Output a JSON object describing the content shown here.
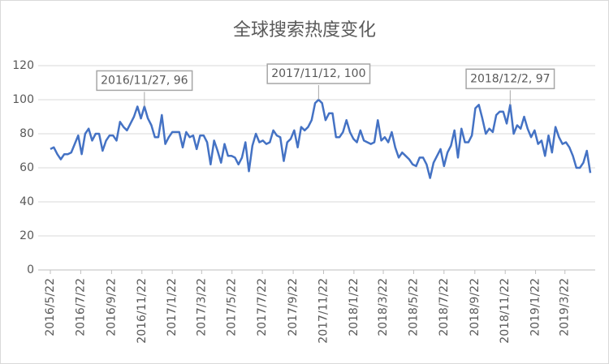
{
  "chart_data": {
    "type": "line",
    "title": "全球搜索热度变化",
    "x": [
      "2016/5/22",
      "2016/5/29",
      "2016/6/5",
      "2016/6/12",
      "2016/6/19",
      "2016/6/26",
      "2016/7/3",
      "2016/7/10",
      "2016/7/17",
      "2016/7/24",
      "2016/7/31",
      "2016/8/7",
      "2016/8/14",
      "2016/8/21",
      "2016/8/28",
      "2016/9/4",
      "2016/9/11",
      "2016/9/18",
      "2016/9/25",
      "2016/10/2",
      "2016/10/9",
      "2016/10/16",
      "2016/10/23",
      "2016/10/30",
      "2016/11/6",
      "2016/11/13",
      "2016/11/20",
      "2016/11/27",
      "2016/12/4",
      "2016/12/11",
      "2016/12/18",
      "2016/12/25",
      "2017/1/1",
      "2017/1/8",
      "2017/1/15",
      "2017/1/22",
      "2017/1/29",
      "2017/2/5",
      "2017/2/12",
      "2017/2/19",
      "2017/2/26",
      "2017/3/5",
      "2017/3/12",
      "2017/3/19",
      "2017/3/26",
      "2017/4/2",
      "2017/4/9",
      "2017/4/16",
      "2017/4/23",
      "2017/4/30",
      "2017/5/7",
      "2017/5/14",
      "2017/5/21",
      "2017/5/28",
      "2017/6/4",
      "2017/6/11",
      "2017/6/18",
      "2017/6/25",
      "2017/7/2",
      "2017/7/9",
      "2017/7/16",
      "2017/7/23",
      "2017/7/30",
      "2017/8/6",
      "2017/8/13",
      "2017/8/20",
      "2017/8/27",
      "2017/9/3",
      "2017/9/10",
      "2017/9/17",
      "2017/9/24",
      "2017/10/1",
      "2017/10/8",
      "2017/10/15",
      "2017/10/22",
      "2017/10/29",
      "2017/11/5",
      "2017/11/12",
      "2017/11/19",
      "2017/11/26",
      "2017/12/3",
      "2017/12/10",
      "2017/12/17",
      "2017/12/24",
      "2017/12/31",
      "2018/1/7",
      "2018/1/14",
      "2018/1/21",
      "2018/1/28",
      "2018/2/4",
      "2018/2/11",
      "2018/2/18",
      "2018/2/25",
      "2018/3/4",
      "2018/3/11",
      "2018/3/18",
      "2018/3/25",
      "2018/4/1",
      "2018/4/8",
      "2018/4/15",
      "2018/4/22",
      "2018/4/29",
      "2018/5/6",
      "2018/5/13",
      "2018/5/20",
      "2018/5/27",
      "2018/6/3",
      "2018/6/10",
      "2018/6/17",
      "2018/6/24",
      "2018/7/1",
      "2018/7/8",
      "2018/7/15",
      "2018/7/22",
      "2018/7/29",
      "2018/8/5",
      "2018/8/12",
      "2018/8/19",
      "2018/8/26",
      "2018/9/2",
      "2018/9/9",
      "2018/9/16",
      "2018/9/23",
      "2018/9/30",
      "2018/10/7",
      "2018/10/14",
      "2018/10/21",
      "2018/10/28",
      "2018/11/4",
      "2018/11/11",
      "2018/11/18",
      "2018/11/25",
      "2018/12/2",
      "2018/12/9",
      "2018/12/16",
      "2018/12/23",
      "2018/12/30",
      "2019/1/6",
      "2019/1/13",
      "2019/1/20",
      "2019/1/27",
      "2019/2/3",
      "2019/2/10",
      "2019/2/17",
      "2019/2/24",
      "2019/3/3",
      "2019/3/10",
      "2019/3/17",
      "2019/3/24",
      "2019/3/31",
      "2019/4/7",
      "2019/4/14",
      "2019/4/21",
      "2019/4/28",
      "2019/5/5",
      "2019/5/12"
    ],
    "series": [
      {
        "color": "#4472c4",
        "values": [
          71,
          72,
          68,
          65,
          68,
          68,
          69,
          74,
          79,
          68,
          80,
          83,
          76,
          80,
          80,
          70,
          76,
          79,
          79,
          76,
          87,
          84,
          82,
          86,
          90,
          96,
          89,
          96,
          89,
          85,
          78,
          78,
          91,
          74,
          78,
          81,
          81,
          81,
          72,
          81,
          78,
          79,
          71,
          79,
          79,
          75,
          62,
          76,
          70,
          63,
          74,
          67,
          67,
          66,
          62,
          66,
          75,
          58,
          73,
          80,
          75,
          76,
          74,
          75,
          82,
          79,
          78,
          64,
          75,
          77,
          82,
          72,
          84,
          82,
          84,
          88,
          98,
          100,
          98,
          88,
          92,
          92,
          78,
          78,
          81,
          88,
          81,
          77,
          75,
          82,
          76,
          75,
          74,
          75,
          88,
          76,
          78,
          75,
          81,
          72,
          66,
          69,
          67,
          65,
          62,
          61,
          66,
          66,
          62,
          54,
          63,
          67,
          71,
          61,
          69,
          73,
          82,
          66,
          83,
          75,
          75,
          79,
          95,
          97,
          89,
          80,
          83,
          81,
          91,
          93,
          93,
          86,
          97,
          80,
          85,
          83,
          90,
          83,
          78,
          82,
          74,
          76,
          67,
          79,
          69,
          84,
          78,
          74,
          75,
          72,
          67,
          60,
          60,
          63,
          70,
          57
        ]
      }
    ],
    "xticks": [
      "2016/5/22",
      "2016/7/22",
      "2016/9/22",
      "2016/11/22",
      "2017/1/22",
      "2017/3/22",
      "2017/5/22",
      "2017/7/22",
      "2017/9/22",
      "2017/11/22",
      "2018/1/22",
      "2018/3/22",
      "2018/5/22",
      "2018/7/22",
      "2018/9/22",
      "2018/11/22",
      "2019/1/22",
      "2019/3/22"
    ],
    "ylim": [
      0,
      120
    ],
    "yticks": [
      0,
      20,
      40,
      60,
      80,
      100,
      120
    ],
    "grid": true,
    "annotations": [
      {
        "text": "2016/11/27, 96",
        "x": "2016/11/27",
        "y": 96
      },
      {
        "text": "2017/11/12, 100",
        "x": "2017/11/12",
        "y": 100
      },
      {
        "text": "2018/12/2, 97",
        "x": "2018/12/2",
        "y": 97
      }
    ]
  }
}
